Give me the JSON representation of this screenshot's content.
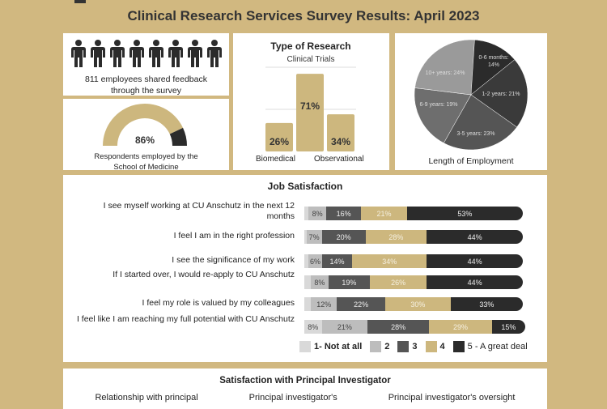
{
  "title": "Clinical Research Services Survey Results: April 2023",
  "employees": {
    "count_text": "811 employees shared feedback through the survey",
    "icon_count": 8
  },
  "som": {
    "percent_label": "86%",
    "value": 86,
    "caption": "Respondents employed by the School of Medicine"
  },
  "colors": {
    "gold": "#cdb77e",
    "dark": "#2b2b2b",
    "s1": "#d9d9d9",
    "s2": "#bdbdbd",
    "s3": "#555555",
    "s4": "#cdb77e",
    "s5": "#2b2b2b"
  },
  "chart_data": [
    {
      "type": "bar",
      "title": "Type of Research",
      "subtitle": "Clinical Trials",
      "categories": [
        "Biomedical",
        "Clinical Trials",
        "Observational"
      ],
      "values": [
        26,
        71,
        34
      ],
      "labels": [
        "26%",
        "71%",
        "34%"
      ],
      "xlabels": [
        "Biomedical",
        "Observational"
      ]
    },
    {
      "type": "pie",
      "title": "Length of Employment",
      "slices": [
        {
          "label": "0-6 months: 14%",
          "value": 14
        },
        {
          "label": "1-2 years: 21%",
          "value": 21
        },
        {
          "label": "3-5 years: 23%",
          "value": 23
        },
        {
          "label": "6-9 years: 19%",
          "value": 19
        },
        {
          "label": "10+ years: 24%",
          "value": 24
        }
      ]
    },
    {
      "type": "bar",
      "stacked": true,
      "title": "Job Satisfaction",
      "legend": [
        "1- Not at all",
        "2",
        "3",
        "4",
        "5 - A great deal"
      ],
      "rows": [
        {
          "label": "I see myself working at CU Anschutz in the next 12 months",
          "values": [
            2,
            8,
            16,
            21,
            53
          ]
        },
        {
          "label": "I feel I am in the right profession",
          "values": [
            1,
            7,
            20,
            28,
            44
          ]
        },
        {
          "label": "I see the significance of my work",
          "values": [
            2,
            6,
            14,
            34,
            44
          ]
        },
        {
          "label": "If I started over, I would re-apply to CU Anschutz",
          "values": [
            3,
            8,
            19,
            26,
            44
          ]
        },
        {
          "label": "I feel my role is valued by my colleagues",
          "values": [
            3,
            12,
            22,
            30,
            33
          ]
        },
        {
          "label": "I feel like I am reaching my full potential with CU Anschutz",
          "values": [
            8,
            21,
            28,
            29,
            15
          ]
        }
      ]
    }
  ],
  "pi": {
    "title": "Satisfaction with Principal Investigator",
    "columns": [
      "Relationship with principal",
      "Principal investigator's",
      "Principal investigator's oversight"
    ]
  }
}
